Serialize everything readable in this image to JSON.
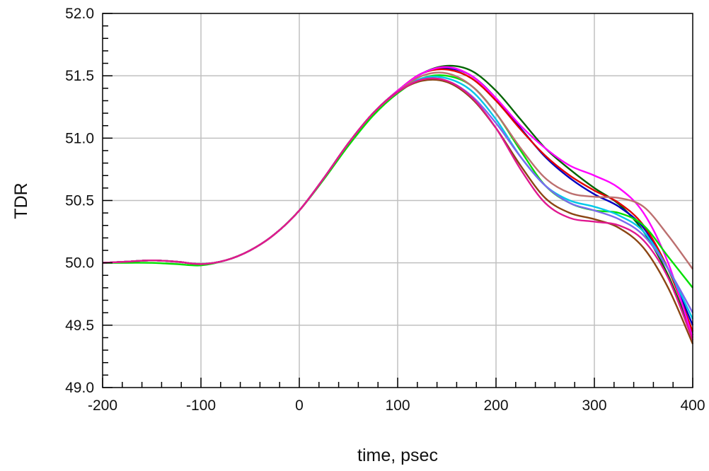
{
  "chart_data": {
    "type": "line",
    "title": "",
    "xlabel": "time, psec",
    "ylabel": "TDR",
    "xlim": [
      -200,
      400
    ],
    "ylim": [
      49.0,
      52.0
    ],
    "grid": true,
    "legend": "none",
    "x_ticks": [
      "-200",
      "-100",
      "0",
      "100",
      "200",
      "300",
      "400"
    ],
    "y_ticks": [
      "49.0",
      "49.5",
      "50.0",
      "50.5",
      "51.0",
      "51.5",
      "52.0"
    ],
    "x": [
      -200,
      -175,
      -150,
      -125,
      -100,
      -75,
      -50,
      -25,
      0,
      25,
      50,
      75,
      100,
      125,
      150,
      175,
      200,
      225,
      250,
      275,
      300,
      325,
      350,
      375,
      400
    ],
    "series": [
      {
        "color": "#006400",
        "values": [
          50.0,
          50.01,
          50.02,
          50.01,
          49.99,
          50.02,
          50.1,
          50.23,
          50.42,
          50.68,
          50.96,
          51.2,
          51.38,
          51.52,
          51.58,
          51.54,
          51.38,
          51.15,
          50.92,
          50.75,
          50.6,
          50.47,
          50.25,
          49.9,
          49.42
        ]
      },
      {
        "color": "#0000c0",
        "values": [
          50.0,
          50.01,
          50.02,
          50.01,
          49.99,
          50.02,
          50.1,
          50.23,
          50.42,
          50.68,
          50.96,
          51.2,
          51.38,
          51.52,
          51.56,
          51.5,
          51.32,
          51.08,
          50.85,
          50.68,
          50.55,
          50.45,
          50.28,
          49.95,
          49.5
        ]
      },
      {
        "color": "#e00000",
        "values": [
          50.0,
          50.01,
          50.02,
          50.01,
          49.99,
          50.02,
          50.1,
          50.23,
          50.42,
          50.68,
          50.96,
          51.2,
          51.38,
          51.52,
          51.55,
          51.48,
          51.3,
          51.07,
          50.86,
          50.7,
          50.58,
          50.48,
          50.3,
          49.95,
          49.45
        ]
      },
      {
        "color": "#ff00ff",
        "values": [
          50.0,
          50.01,
          50.02,
          50.01,
          49.99,
          50.02,
          50.1,
          50.23,
          50.42,
          50.68,
          50.96,
          51.2,
          51.38,
          51.52,
          51.57,
          51.5,
          51.32,
          51.1,
          50.92,
          50.78,
          50.7,
          50.6,
          50.4,
          50.0,
          49.4
        ]
      },
      {
        "color": "#00e000",
        "values": [
          50.0,
          50.0,
          50.0,
          49.99,
          49.98,
          50.02,
          50.1,
          50.23,
          50.42,
          50.67,
          50.94,
          51.18,
          51.36,
          51.48,
          51.5,
          51.42,
          51.2,
          50.9,
          50.62,
          50.48,
          50.42,
          50.4,
          50.3,
          50.05,
          49.8
        ]
      },
      {
        "color": "#00c8e8",
        "values": [
          50.0,
          50.01,
          50.02,
          50.01,
          49.99,
          50.02,
          50.1,
          50.23,
          50.42,
          50.68,
          50.96,
          51.2,
          51.37,
          51.48,
          51.48,
          51.38,
          51.15,
          50.85,
          50.62,
          50.5,
          50.45,
          50.38,
          50.25,
          49.95,
          49.55
        ]
      },
      {
        "color": "#7b68ee",
        "values": [
          50.0,
          50.01,
          50.02,
          50.01,
          49.99,
          50.02,
          50.1,
          50.23,
          50.42,
          50.68,
          50.96,
          51.2,
          51.37,
          51.47,
          51.46,
          51.34,
          51.12,
          50.85,
          50.62,
          50.48,
          50.42,
          50.35,
          50.22,
          49.95,
          49.6
        ]
      },
      {
        "color": "#8b4513",
        "values": [
          50.0,
          50.01,
          50.02,
          50.01,
          49.99,
          50.02,
          50.1,
          50.23,
          50.42,
          50.68,
          50.96,
          51.2,
          51.37,
          51.46,
          51.45,
          51.32,
          51.08,
          50.78,
          50.52,
          50.4,
          50.35,
          50.28,
          50.12,
          49.8,
          49.35
        ]
      },
      {
        "color": "#bc6f6f",
        "values": [
          50.0,
          50.01,
          50.02,
          50.01,
          49.99,
          50.02,
          50.1,
          50.23,
          50.42,
          50.68,
          50.96,
          51.2,
          51.37,
          51.5,
          51.52,
          51.42,
          51.2,
          50.92,
          50.68,
          50.56,
          50.53,
          50.52,
          50.45,
          50.22,
          49.95
        ]
      },
      {
        "color": "#e01890",
        "values": [
          50.0,
          50.01,
          50.02,
          50.01,
          49.99,
          50.02,
          50.1,
          50.23,
          50.42,
          50.68,
          50.96,
          51.2,
          51.37,
          51.47,
          51.46,
          51.33,
          51.08,
          50.75,
          50.48,
          50.36,
          50.33,
          50.3,
          50.18,
          49.88,
          49.38
        ]
      }
    ]
  }
}
